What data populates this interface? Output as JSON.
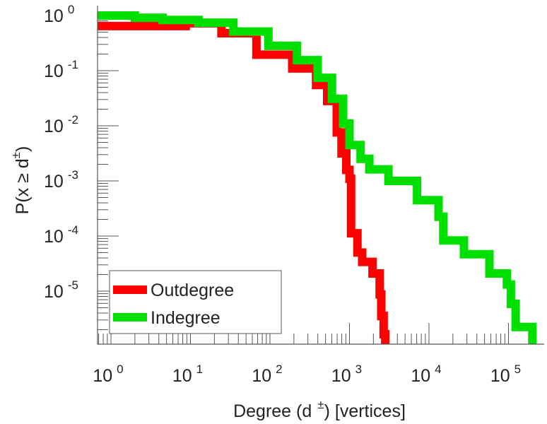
{
  "chart_data": {
    "type": "line",
    "xscale": "log",
    "yscale": "log",
    "xlabel": "Degree (d ±) [vertices]",
    "xlabel_parts": [
      "Degree (d",
      "±",
      ") [vertices]"
    ],
    "ylabel_parts": [
      "P(x ≥ d",
      "±",
      ")"
    ],
    "x_ticks": [
      {
        "base": "10",
        "exp": "0"
      },
      {
        "base": "10",
        "exp": "1"
      },
      {
        "base": "10",
        "exp": "2"
      },
      {
        "base": "10",
        "exp": "3"
      },
      {
        "base": "10",
        "exp": "4"
      },
      {
        "base": "10",
        "exp": "5"
      }
    ],
    "y_ticks": [
      {
        "base": "10",
        "exp": "0"
      },
      {
        "base": "10",
        "exp": "-1"
      },
      {
        "base": "10",
        "exp": "-2"
      },
      {
        "base": "10",
        "exp": "-3"
      },
      {
        "base": "10",
        "exp": "-4"
      },
      {
        "base": "10",
        "exp": "-5"
      }
    ],
    "xlim_log10": [
      -0.17,
      5.4
    ],
    "ylim_log10": [
      -5.96,
      0.15
    ],
    "legend_position": "bottom-left",
    "series": [
      {
        "name": "Outdegree",
        "color": "#ff0000",
        "log10_x": [
          -0.17,
          0.0,
          0.5,
          0.94,
          1.39,
          1.83,
          2.28,
          2.58,
          2.72,
          2.84,
          2.9,
          2.96,
          3.0,
          3.02,
          3.02,
          3.1,
          3.16,
          3.29,
          3.38,
          3.4,
          3.43,
          3.45
        ],
        "log10_y": [
          -0.19,
          -0.19,
          -0.19,
          -0.14,
          -0.32,
          -0.71,
          -0.96,
          -1.26,
          -1.55,
          -2.12,
          -2.5,
          -2.8,
          -2.96,
          -3.0,
          -3.95,
          -4.3,
          -4.47,
          -4.68,
          -5.06,
          -5.45,
          -5.78,
          -5.96
        ]
      },
      {
        "name": "Indegree",
        "color": "#00e000",
        "log10_x": [
          -0.17,
          0.05,
          0.3,
          0.65,
          1.1,
          1.54,
          1.98,
          2.34,
          2.6,
          2.78,
          2.92,
          3.0,
          3.14,
          3.25,
          3.49,
          3.85,
          4.12,
          4.18,
          4.44,
          4.76,
          4.98,
          5.03,
          5.09,
          5.3,
          5.3
        ],
        "log10_y": [
          0.0,
          0.0,
          -0.04,
          -0.08,
          -0.13,
          -0.29,
          -0.55,
          -0.81,
          -1.13,
          -1.51,
          -1.96,
          -2.35,
          -2.6,
          -2.79,
          -3.0,
          -3.35,
          -3.65,
          -4.08,
          -4.33,
          -4.68,
          -4.88,
          -5.23,
          -5.65,
          -5.65,
          -5.96
        ]
      }
    ]
  }
}
